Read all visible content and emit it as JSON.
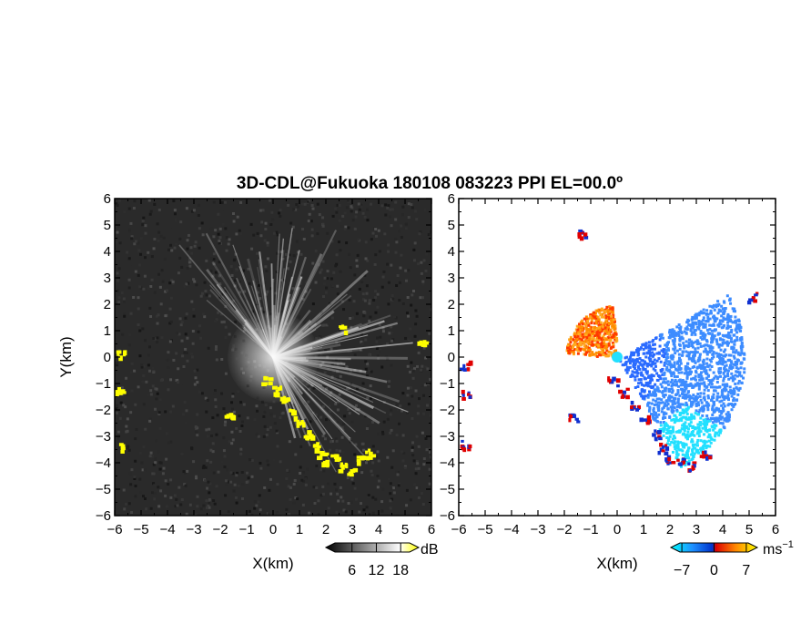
{
  "title": "3D-CDL@Fukuoka 180108 083223 PPI EL=00.0º",
  "chart_data": [
    {
      "type": "heatmap",
      "panel": "reflectivity",
      "xlabel": "X(km)",
      "ylabel": "Y(km)",
      "xlim": [
        -6,
        6
      ],
      "ylim": [
        -6,
        6
      ],
      "x_ticks": [
        "−6",
        "−5",
        "−4",
        "−3",
        "−2",
        "−1",
        "0",
        "1",
        "2",
        "3",
        "4",
        "5",
        "6"
      ],
      "y_ticks": [
        "6",
        "5",
        "4",
        "3",
        "2",
        "1",
        "0",
        "−1",
        "−2",
        "−3",
        "−4",
        "−5",
        "−6"
      ],
      "colorbar": {
        "unit": "dB",
        "ticks": [
          "6",
          "12",
          "18"
        ],
        "tick_values": [
          6,
          12,
          18
        ],
        "range": [
          0,
          22
        ],
        "colors": [
          "#000000",
          "#ffffff",
          "#ffff00"
        ]
      },
      "background_color": "#2a2a2a",
      "echo_color": "#ffff00"
    },
    {
      "type": "heatmap",
      "panel": "doppler-velocity",
      "xlabel": "X(km)",
      "ylabel": "",
      "xlim": [
        -6,
        6
      ],
      "ylim": [
        -6,
        6
      ],
      "x_ticks": [
        "−6",
        "−5",
        "−4",
        "−3",
        "−2",
        "−1",
        "0",
        "1",
        "2",
        "3",
        "4",
        "5",
        "6"
      ],
      "y_ticks": [
        "6",
        "5",
        "4",
        "3",
        "2",
        "1",
        "0",
        "−1",
        "−2",
        "−3",
        "−4",
        "−5",
        "−6"
      ],
      "colorbar": {
        "unit": "ms",
        "unit_exponent": "−1",
        "ticks": [
          "−7",
          "0",
          "7"
        ],
        "tick_values": [
          -7,
          0,
          7
        ],
        "range": [
          -9,
          9
        ],
        "colors": [
          "#00ffff",
          "#0044ff",
          "#ff0000",
          "#ff9900",
          "#ffff00"
        ]
      }
    }
  ]
}
